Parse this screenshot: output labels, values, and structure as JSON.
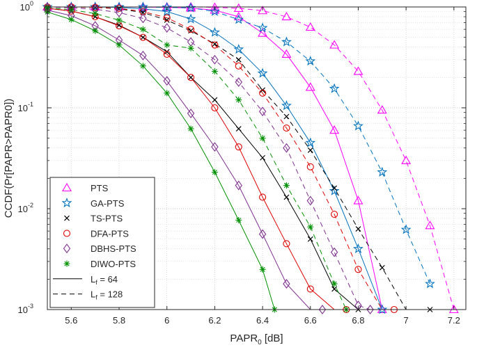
{
  "chart_data": {
    "type": "line",
    "yscale": "log",
    "xlabel": "PAPR",
    "xlabel_sub": "0",
    "xlabel_unit": " [dB]",
    "ylabel": "CCDF(Pr[PAPR>PAPR0])",
    "xlim": [
      5.5,
      7.25
    ],
    "ylim": [
      0.001,
      1
    ],
    "xticks": [
      5.6,
      5.8,
      6,
      6.2,
      6.4,
      6.6,
      6.8,
      7,
      7.2
    ],
    "xtick_labels": [
      "5.6",
      "5.8",
      "6",
      "6.2",
      "6.4",
      "6.6",
      "6.8",
      "7",
      "7.2"
    ],
    "ytick_labels": [
      {
        "base": "10",
        "exp": "0",
        "value": 1
      },
      {
        "base": "10",
        "exp": "-1",
        "value": 0.1
      },
      {
        "base": "10",
        "exp": "-2",
        "value": 0.01
      },
      {
        "base": "10",
        "exp": "-3",
        "value": 0.001
      }
    ],
    "grid": true,
    "legend_position": "bottom-left",
    "legend": [
      {
        "label": "PTS",
        "marker": "triangle",
        "color": "#ff00ff"
      },
      {
        "label": "GA-PTS",
        "marker": "star",
        "color": "#0072bd"
      },
      {
        "label": "TS-PTS",
        "marker": "x",
        "color": "#000000"
      },
      {
        "label": "DFA-PTS",
        "marker": "circle",
        "color": "#e00000"
      },
      {
        "label": "DBHS-PTS",
        "marker": "diamond",
        "color": "#7e2f8e"
      },
      {
        "label": "DIWO-PTS",
        "marker": "asterisk",
        "color": "#009000"
      },
      {
        "label": "L",
        "sub": "f",
        "suffix": " = 64",
        "line": "solid"
      },
      {
        "label": "L",
        "sub": "f",
        "suffix": " = 128",
        "line": "dashed"
      }
    ],
    "series": [
      {
        "name": "PTS",
        "Lf": 64,
        "color": "#ff00ff",
        "marker": "triangle",
        "dash": false,
        "x": [
          5.5,
          5.6,
          5.7,
          5.8,
          5.9,
          6,
          6.1,
          6.2,
          6.3,
          6.4,
          6.5,
          6.6,
          6.7,
          6.8,
          6.9
        ],
        "y": [
          1,
          1,
          1,
          1,
          0.998,
          0.99,
          0.975,
          0.93,
          0.8,
          0.55,
          0.34,
          0.16,
          0.06,
          0.012,
          0.001
        ]
      },
      {
        "name": "PTS",
        "Lf": 128,
        "color": "#ff00ff",
        "marker": "triangle",
        "dash": true,
        "x": [
          5.5,
          5.6,
          5.7,
          5.8,
          5.9,
          6,
          6.1,
          6.2,
          6.3,
          6.4,
          6.5,
          6.6,
          6.7,
          6.8,
          6.9,
          7,
          7.1,
          7.2
        ],
        "y": [
          1,
          1,
          1,
          1,
          1,
          1,
          1,
          0.99,
          0.97,
          0.92,
          0.8,
          0.63,
          0.42,
          0.23,
          0.095,
          0.03,
          0.0068,
          0.001
        ]
      },
      {
        "name": "GA-PTS",
        "Lf": 64,
        "color": "#0072bd",
        "marker": "star",
        "dash": false,
        "x": [
          5.5,
          5.6,
          5.7,
          5.8,
          5.9,
          6,
          6.1,
          6.2,
          6.3,
          6.4,
          6.5,
          6.6,
          6.7,
          6.8,
          6.9
        ],
        "y": [
          1,
          1,
          1,
          0.99,
          0.96,
          0.9,
          0.76,
          0.56,
          0.38,
          0.22,
          0.105,
          0.045,
          0.015,
          0.004,
          0.001
        ]
      },
      {
        "name": "GA-PTS",
        "Lf": 128,
        "color": "#0072bd",
        "marker": "star",
        "dash": true,
        "x": [
          5.5,
          5.6,
          5.7,
          5.8,
          5.9,
          6,
          6.1,
          6.2,
          6.3,
          6.4,
          6.5,
          6.6,
          6.7,
          6.8,
          6.9,
          7,
          7.1
        ],
        "y": [
          1,
          1,
          1,
          1,
          1,
          0.99,
          0.98,
          0.9,
          0.75,
          0.62,
          0.45,
          0.29,
          0.155,
          0.066,
          0.023,
          0.0062,
          0.0018
        ]
      },
      {
        "name": "TS-PTS",
        "Lf": 64,
        "color": "#000000",
        "marker": "x",
        "dash": false,
        "x": [
          5.5,
          5.6,
          5.7,
          5.8,
          5.9,
          6,
          6.1,
          6.2,
          6.3,
          6.4,
          6.5,
          6.6,
          6.7,
          6.8
        ],
        "y": [
          0.97,
          0.91,
          0.8,
          0.66,
          0.5,
          0.36,
          0.2,
          0.12,
          0.062,
          0.032,
          0.013,
          0.005,
          0.0016,
          0.001
        ]
      },
      {
        "name": "TS-PTS",
        "Lf": 128,
        "color": "#000000",
        "marker": "x",
        "dash": true,
        "x": [
          5.5,
          5.6,
          5.7,
          5.8,
          5.9,
          6,
          6.1,
          6.2,
          6.3,
          6.4,
          6.5,
          6.6,
          6.7,
          6.8,
          6.9,
          7,
          7.1
        ],
        "y": [
          1,
          1,
          0.99,
          0.96,
          0.88,
          0.74,
          0.58,
          0.43,
          0.3,
          0.15,
          0.082,
          0.038,
          0.016,
          0.0063,
          0.0026,
          0.001,
          0.001
        ]
      },
      {
        "name": "DFA-PTS",
        "Lf": 64,
        "color": "#e00000",
        "marker": "circle",
        "dash": false,
        "x": [
          5.5,
          5.6,
          5.7,
          5.8,
          5.9,
          6,
          6.1,
          6.2,
          6.3,
          6.4,
          6.5,
          6.6,
          6.7,
          6.75
        ],
        "y": [
          0.97,
          0.91,
          0.8,
          0.65,
          0.5,
          0.34,
          0.2,
          0.1,
          0.041,
          0.013,
          0.0045,
          0.0016,
          0.001,
          0.001
        ]
      },
      {
        "name": "DFA-PTS",
        "Lf": 128,
        "color": "#e00000",
        "marker": "circle",
        "dash": true,
        "x": [
          5.5,
          5.6,
          5.7,
          5.8,
          5.9,
          6,
          6.1,
          6.2,
          6.3,
          6.4,
          6.5,
          6.6,
          6.7,
          6.8,
          6.9,
          6.95
        ],
        "y": [
          1,
          1,
          0.99,
          0.97,
          0.9,
          0.78,
          0.6,
          0.42,
          0.26,
          0.14,
          0.063,
          0.026,
          0.0088,
          0.0025,
          0.001,
          0.001
        ]
      },
      {
        "name": "DBHS-PTS",
        "Lf": 64,
        "color": "#7e2f8e",
        "marker": "diamond",
        "dash": false,
        "x": [
          5.5,
          5.6,
          5.7,
          5.8,
          5.9,
          6,
          6.1,
          6.2,
          6.3,
          6.4,
          6.5,
          6.6,
          6.65
        ],
        "y": [
          0.93,
          0.82,
          0.65,
          0.47,
          0.33,
          0.185,
          0.088,
          0.041,
          0.017,
          0.0056,
          0.0018,
          0.001,
          0.001
        ]
      },
      {
        "name": "DBHS-PTS",
        "Lf": 128,
        "color": "#7e2f8e",
        "marker": "diamond",
        "dash": true,
        "x": [
          5.5,
          5.6,
          5.7,
          5.8,
          5.9,
          6,
          6.1,
          6.2,
          6.3,
          6.4,
          6.5,
          6.6,
          6.7,
          6.8,
          6.85
        ],
        "y": [
          1,
          0.98,
          0.95,
          0.88,
          0.77,
          0.62,
          0.45,
          0.3,
          0.18,
          0.092,
          0.04,
          0.012,
          0.0037,
          0.0011,
          0.001
        ]
      },
      {
        "name": "DIWO-PTS",
        "Lf": 64,
        "color": "#009000",
        "marker": "asterisk",
        "dash": false,
        "x": [
          5.5,
          5.6,
          5.7,
          5.8,
          5.9,
          6,
          6.1,
          6.2,
          6.3,
          6.4,
          6.45
        ],
        "y": [
          0.89,
          0.75,
          0.58,
          0.42,
          0.26,
          0.14,
          0.062,
          0.023,
          0.0077,
          0.0025,
          0.001
        ]
      },
      {
        "name": "DIWO-PTS",
        "Lf": 128,
        "color": "#009000",
        "marker": "asterisk",
        "dash": true,
        "x": [
          5.5,
          5.6,
          5.7,
          5.8,
          5.9,
          6,
          6.1,
          6.2,
          6.3,
          6.4,
          6.5,
          6.6,
          6.7,
          6.75
        ],
        "y": [
          0.98,
          0.94,
          0.86,
          0.74,
          0.6,
          0.42,
          0.39,
          0.23,
          0.12,
          0.05,
          0.017,
          0.0066,
          0.0018,
          0.001
        ]
      }
    ]
  }
}
